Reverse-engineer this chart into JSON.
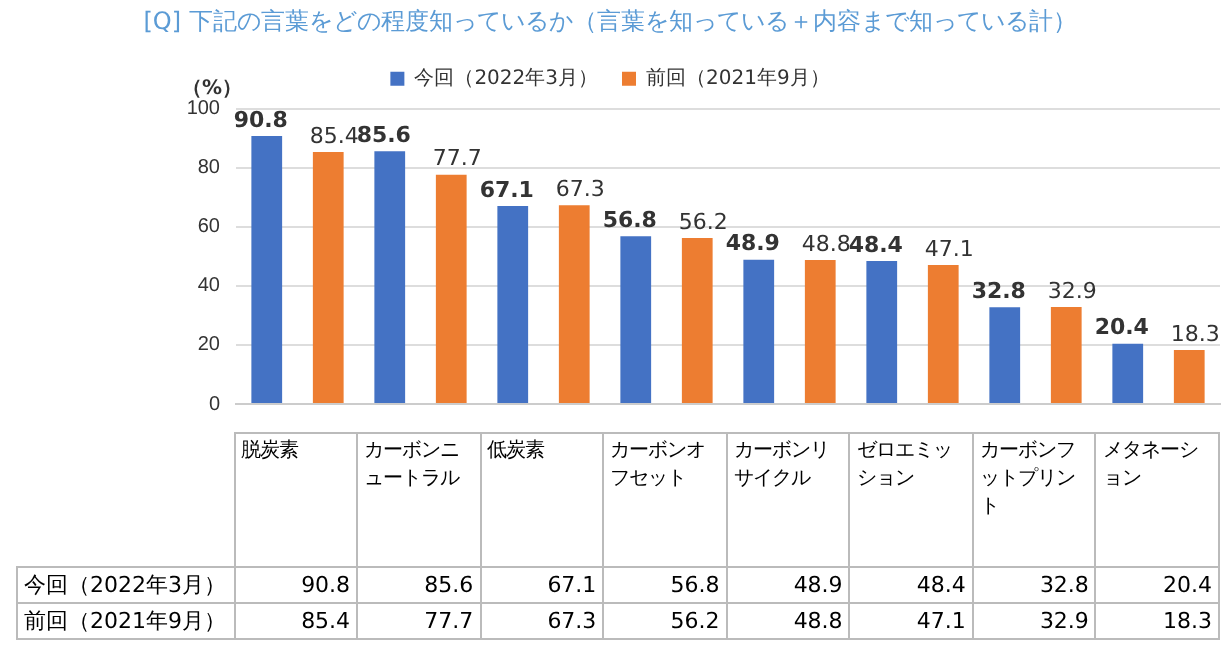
{
  "chart_data": {
    "type": "bar",
    "title": "[Q] 下記の言葉をどの程度知っているか（言葉を知っている＋内容まで知っている計）",
    "ylabel": "（%）",
    "categories": [
      "脱炭素",
      "カーボンニュートラル",
      "低炭素",
      "カーボンオフセット",
      "カーボンリサイクル",
      "ゼロエミッション",
      "カーボンフットプリント",
      "メタネーション"
    ],
    "series": [
      {
        "name": "今回（2022年3月）",
        "color": "#4472c4",
        "values": [
          90.8,
          85.6,
          67.1,
          56.8,
          48.9,
          48.4,
          32.8,
          20.4
        ],
        "value_labels": [
          "90.8",
          "85.6",
          "67.1",
          "56.8",
          "48.9",
          "48.4",
          "32.8",
          "20.4"
        ]
      },
      {
        "name": "前回（2021年9月）",
        "color": "#ed7d31",
        "values": [
          85.4,
          77.7,
          67.3,
          56.2,
          48.8,
          47.1,
          32.9,
          18.3
        ],
        "value_labels": [
          "85.4",
          "77.7",
          "67.3",
          "56.2",
          "48.8",
          "47.1",
          "32.9",
          "18.3"
        ]
      }
    ],
    "annotations": [
      "90.8",
      "85.6",
      "67.1",
      "56.8",
      "48.9",
      "48.4",
      "32.8",
      "20.4",
      "85.4",
      "77.7",
      "67.3",
      "56.2",
      "48.8",
      "47.1",
      "32.9",
      "18.3"
    ],
    "ylim": [
      0,
      100
    ],
    "yticks": [
      0,
      20,
      40,
      60,
      80,
      100
    ],
    "grid": "y",
    "legend": "top",
    "tick_labels": "y",
    "data_labels": true
  }
}
